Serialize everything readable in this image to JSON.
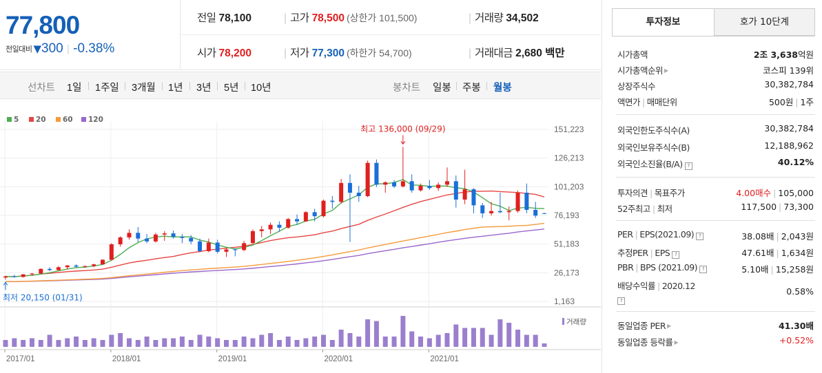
{
  "summary": {
    "price": "77,800",
    "change_label": "전일대비",
    "change_arrow": "▼",
    "change_amount": "300",
    "change_rate": "-0.38%"
  },
  "stats": {
    "prev_close": {
      "label": "전일",
      "value": "78,100"
    },
    "high": {
      "label": "고가",
      "value": "78,500",
      "sub": "(상한가 101,500)"
    },
    "volume": {
      "label": "거래량",
      "value": "34,502"
    },
    "open": {
      "label": "시가",
      "value": "78,200"
    },
    "low": {
      "label": "저가",
      "value": "77,300",
      "sub": "(하한가 54,700)"
    },
    "trade_value": {
      "label": "거래대금",
      "value": "2,680 백만"
    }
  },
  "period_bar": {
    "line_label": "선차트",
    "line_periods": [
      "1일",
      "1주일",
      "3개월",
      "1년",
      "3년",
      "5년",
      "10년"
    ],
    "candle_label": "봉차트",
    "candle_periods": [
      "일봉",
      "주봉",
      "월봉"
    ],
    "active_candle": "월봉"
  },
  "chart_data": {
    "type": "candlestick",
    "title": "",
    "y_ticks": [
      "151,223",
      "126,213",
      "101,203",
      "76,193",
      "51,183",
      "26,173",
      "1,163"
    ],
    "ylim": [
      1163,
      151223
    ],
    "x_ticks": [
      "2017/01",
      "2018/01",
      "2019/01",
      "2020/01",
      "2021/01"
    ],
    "ma_legend": [
      {
        "name": "5",
        "color": "#4caf50"
      },
      {
        "name": "20",
        "color": "#e84545"
      },
      {
        "name": "60",
        "color": "#f59a3b"
      },
      {
        "name": "120",
        "color": "#9966cc"
      }
    ],
    "annotations": {
      "high": "최고 136,000 (09/29)",
      "low": "최저 20,150 (01/31)"
    },
    "volume_label": "거래량",
    "colors": {
      "up": "#e02020",
      "down": "#1a6fd8",
      "volume": "#9b7fce"
    },
    "candles": [
      [
        22000,
        23500,
        20150,
        23000
      ],
      [
        23000,
        24500,
        22000,
        22500
      ],
      [
        22500,
        25000,
        22000,
        24800
      ],
      [
        24800,
        26000,
        23500,
        25500
      ],
      [
        25500,
        30000,
        25000,
        29500
      ],
      [
        29500,
        31000,
        27500,
        28500
      ],
      [
        28500,
        32000,
        28000,
        31000
      ],
      [
        31000,
        33000,
        29000,
        32500
      ],
      [
        32500,
        33500,
        30500,
        31500
      ],
      [
        31500,
        32500,
        30500,
        32000
      ],
      [
        32000,
        34000,
        31000,
        33500
      ],
      [
        33500,
        38000,
        33000,
        37500
      ],
      [
        37500,
        52000,
        37000,
        51000
      ],
      [
        51000,
        58000,
        49000,
        57000
      ],
      [
        57000,
        64000,
        55000,
        61000
      ],
      [
        61000,
        66000,
        53000,
        56000
      ],
      [
        56000,
        60000,
        52000,
        53500
      ],
      [
        53500,
        61000,
        52500,
        59500
      ],
      [
        59500,
        62500,
        54000,
        60500
      ],
      [
        60500,
        63000,
        56000,
        57500
      ],
      [
        57500,
        60000,
        52000,
        56500
      ],
      [
        56500,
        59000,
        51000,
        53500
      ],
      [
        53500,
        56000,
        44000,
        45000
      ],
      [
        45000,
        56000,
        44000,
        52500
      ],
      [
        52500,
        55000,
        43000,
        44500
      ],
      [
        44500,
        48000,
        40000,
        46500
      ],
      [
        46500,
        47500,
        40500,
        46000
      ],
      [
        46000,
        54000,
        45000,
        52000
      ],
      [
        52000,
        64000,
        51500,
        62500
      ],
      [
        62500,
        67000,
        57000,
        64000
      ],
      [
        64000,
        70000,
        60000,
        68000
      ],
      [
        68000,
        71000,
        62000,
        65500
      ],
      [
        65500,
        74000,
        64500,
        73000
      ],
      [
        73000,
        77000,
        68000,
        71000
      ],
      [
        71000,
        80000,
        70500,
        79000
      ],
      [
        79000,
        82000,
        71000,
        75500
      ],
      [
        75500,
        90000,
        74500,
        89000
      ],
      [
        89000,
        93000,
        82000,
        88000
      ],
      [
        88000,
        108000,
        86500,
        104500
      ],
      [
        104500,
        112000,
        53000,
        96000
      ],
      [
        96000,
        102000,
        88000,
        93000
      ],
      [
        93000,
        124000,
        92000,
        122000
      ],
      [
        122000,
        125000,
        101000,
        103000
      ],
      [
        103000,
        106000,
        96000,
        105000
      ],
      [
        105000,
        107000,
        100000,
        101500
      ],
      [
        101500,
        136000,
        100500,
        106000
      ],
      [
        106000,
        112000,
        96000,
        98000
      ],
      [
        98000,
        104000,
        97000,
        102000
      ],
      [
        102000,
        107000,
        98500,
        100000
      ],
      [
        100000,
        105000,
        97500,
        103000
      ],
      [
        103000,
        118000,
        101000,
        106000
      ],
      [
        106000,
        111000,
        83000,
        90000
      ],
      [
        90000,
        116000,
        86000,
        99000
      ],
      [
        99000,
        100000,
        78000,
        85000
      ],
      [
        85000,
        87000,
        74000,
        78000
      ],
      [
        78000,
        88000,
        76000,
        80000
      ],
      [
        80000,
        96000,
        78000,
        79000
      ],
      [
        79000,
        84000,
        72000,
        80000
      ],
      [
        80000,
        98000,
        78500,
        96000
      ],
      [
        96000,
        104000,
        78000,
        81000
      ],
      [
        81000,
        88000,
        74000,
        76000
      ],
      [
        78100,
        78500,
        77300,
        77800
      ]
    ],
    "volumes": [
      4,
      5,
      4,
      5,
      4,
      7,
      4,
      5,
      6,
      4,
      5,
      4,
      7,
      8,
      5,
      4,
      6,
      4,
      5,
      5,
      6,
      4,
      7,
      6,
      5,
      4,
      4,
      6,
      5,
      7,
      8,
      4,
      6,
      4,
      5,
      6,
      7,
      4,
      10,
      8,
      6,
      16,
      15,
      6,
      6,
      18,
      9,
      6,
      5,
      7,
      8,
      13,
      11,
      11,
      11,
      7,
      16,
      14,
      10,
      7,
      7,
      2
    ]
  },
  "right_panel": {
    "tabs": [
      "투자정보",
      "호가 10단계"
    ],
    "market_cap": {
      "label": "시가총액",
      "value_num": "2조 3,638",
      "unit": "억원"
    },
    "market_cap_rank": {
      "label": "시가총액순위",
      "value": "코스피 139위"
    },
    "listed_shares": {
      "label": "상장주식수",
      "value": "30,382,784"
    },
    "par_value": {
      "label1": "액면가",
      "label2": "매매단위",
      "value1": "500원",
      "value2": "1주"
    },
    "foreign_limit": {
      "label": "외국인한도주식수(A)",
      "value": "30,382,784"
    },
    "foreign_hold": {
      "label": "외국인보유주식수(B)",
      "value": "12,188,962"
    },
    "foreign_ratio": {
      "label": "외국인소진율(B/A)",
      "value": "40.12%"
    },
    "opinion": {
      "label1": "투자의견",
      "label2": "목표주가",
      "value1": "4.00매수",
      "value2": "105,000"
    },
    "week52": {
      "label1": "52주최고",
      "label2": "최저",
      "value1": "117,500",
      "value2": "73,300"
    },
    "per_eps": {
      "label1": "PER",
      "label2": "EPS",
      "period": "(2021.09)",
      "value1": "38.08배",
      "value2": "2,043원"
    },
    "est_per_eps": {
      "label1": "추정PER",
      "label2": "EPS",
      "value1": "47.61배",
      "value2": "1,634원"
    },
    "pbr_bps": {
      "label1": "PBR",
      "label2": "BPS",
      "period": "(2021.09)",
      "value1": "5.10배",
      "value2": "15,258원"
    },
    "dividend": {
      "label": "배당수익률",
      "period": "2020.12",
      "value": "0.58%"
    },
    "sector_per": {
      "label": "동일업종 PER",
      "value": "41.30배"
    },
    "sector_change": {
      "label": "동일업종 등락률",
      "value": "+0.52%"
    },
    "help_glyph": "?"
  }
}
